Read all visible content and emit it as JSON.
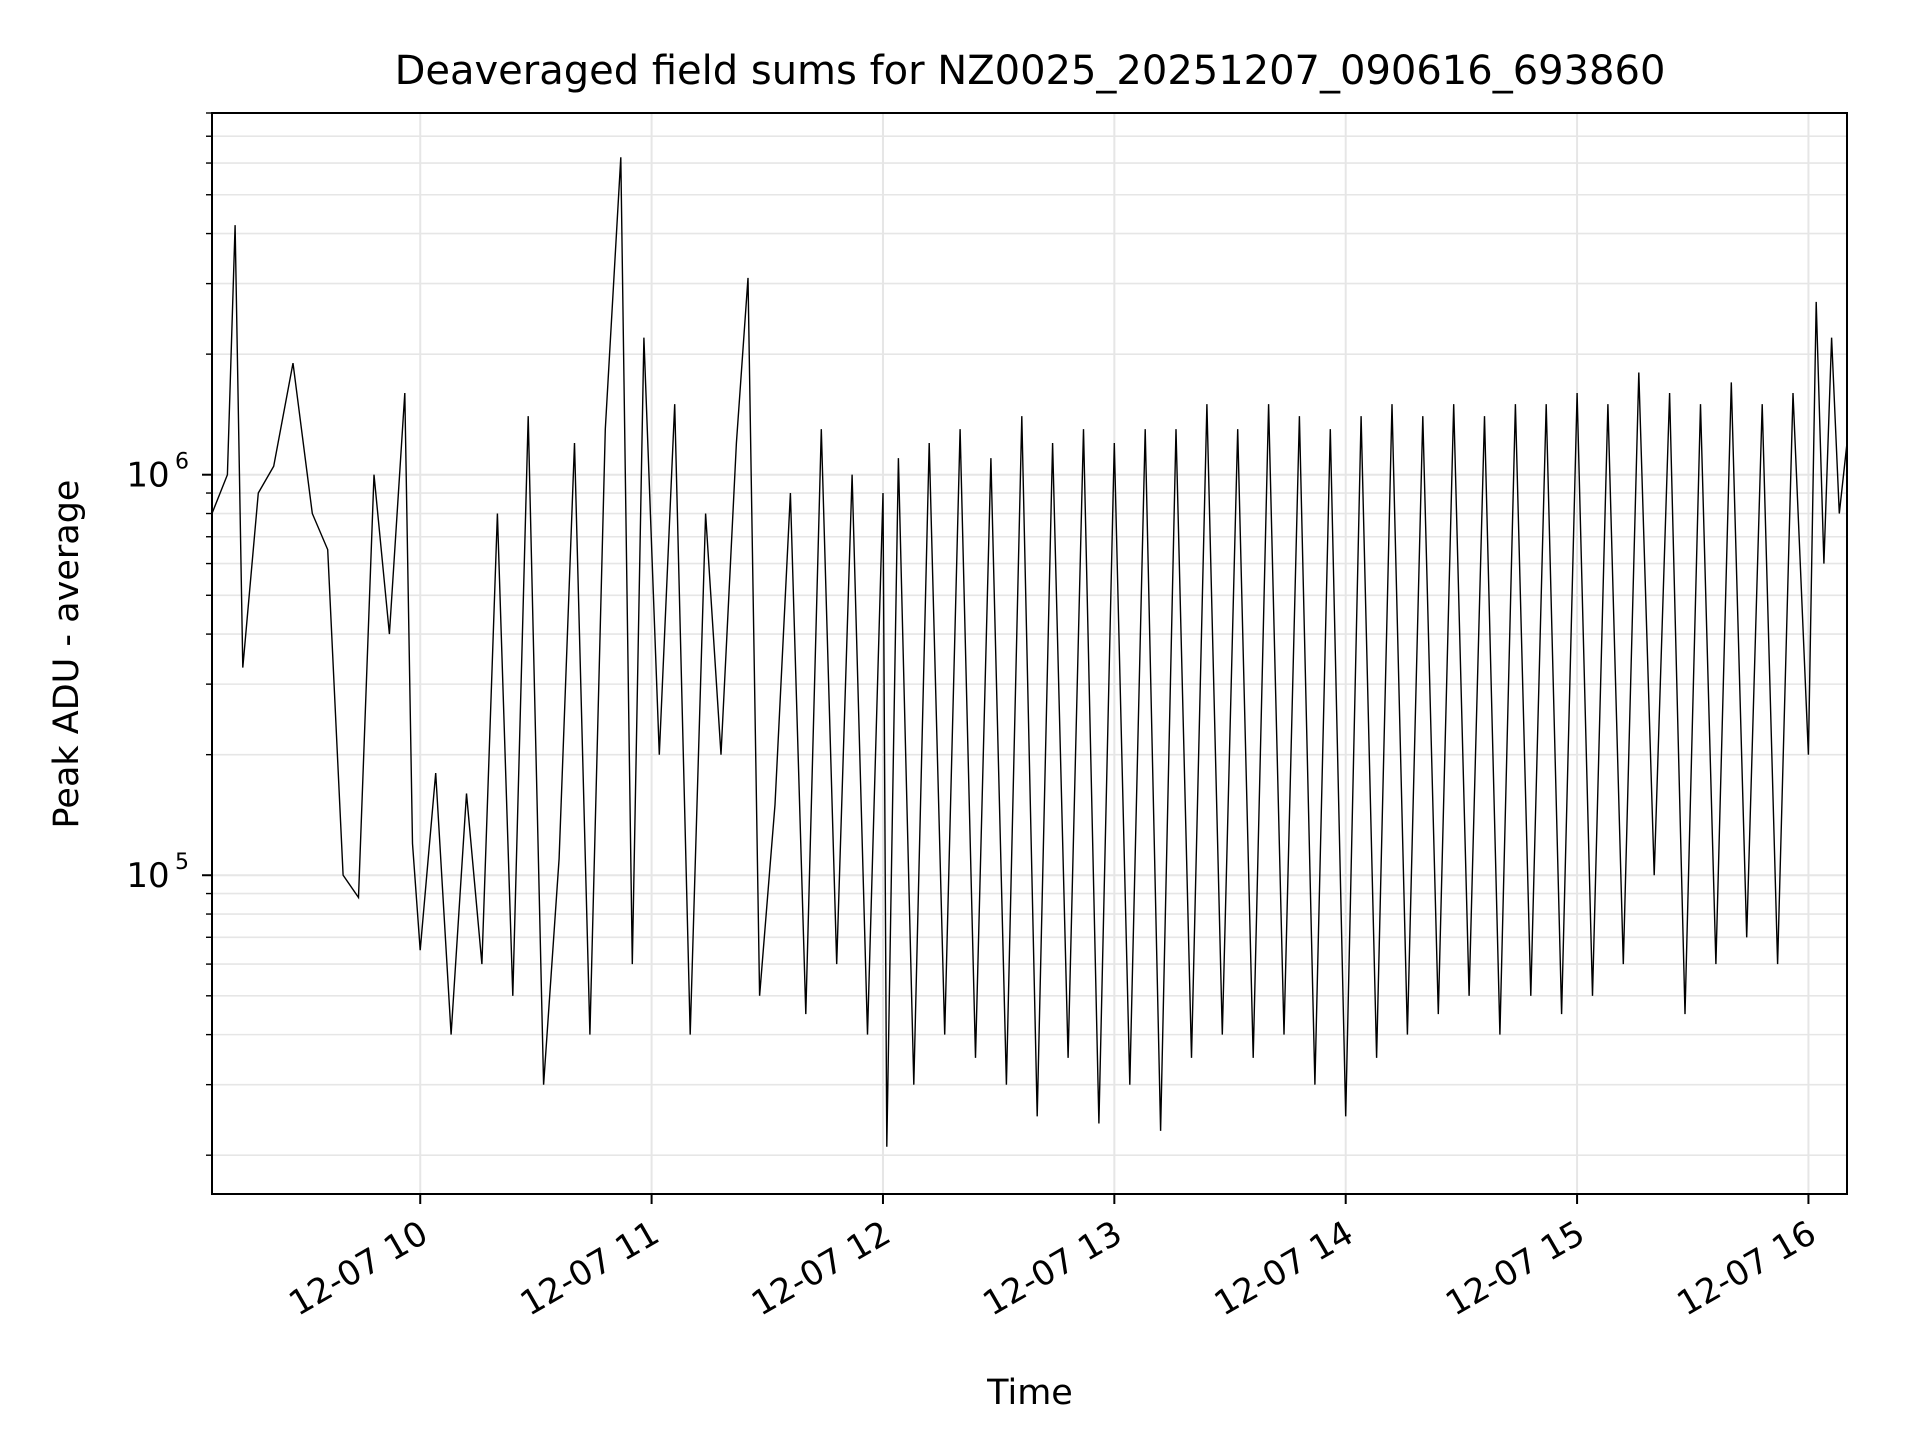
{
  "chart_data": {
    "type": "line",
    "title": "Deaveraged field sums for NZ0025_20251207_090616_693860",
    "xlabel": "Time",
    "ylabel": "Peak ADU - average",
    "yscale": "log",
    "xlim": [
      "2025-12-07 09:06",
      "2025-12-07 16:10"
    ],
    "ylim": [
      16000,
      8000000
    ],
    "x_ticks": [
      "12-07 10",
      "12-07 11",
      "12-07 12",
      "12-07 13",
      "12-07 14",
      "12-07 15",
      "12-07 16"
    ],
    "y_ticks": [
      {
        "base": "10",
        "exp": "5",
        "value": 100000
      },
      {
        "base": "10",
        "exp": "6",
        "value": 1000000
      }
    ],
    "grid": true,
    "line_color": "#000000",
    "series": [
      {
        "points": [
          [
            "2025-12-07 09:06",
            800000
          ],
          [
            "2025-12-07 09:10",
            1000000
          ],
          [
            "2025-12-07 09:12",
            4200000
          ],
          [
            "2025-12-07 09:14",
            330000
          ],
          [
            "2025-12-07 09:18",
            900000
          ],
          [
            "2025-12-07 09:22",
            1050000
          ],
          [
            "2025-12-07 09:27",
            1900000
          ],
          [
            "2025-12-07 09:32",
            800000
          ],
          [
            "2025-12-07 09:36",
            650000
          ],
          [
            "2025-12-07 09:40",
            100000
          ],
          [
            "2025-12-07 09:44",
            88000
          ],
          [
            "2025-12-07 09:48",
            1000000
          ],
          [
            "2025-12-07 09:52",
            400000
          ],
          [
            "2025-12-07 09:56",
            1600000
          ],
          [
            "2025-12-07 09:58",
            120000
          ],
          [
            "2025-12-07 10:00",
            65000
          ],
          [
            "2025-12-07 10:04",
            180000
          ],
          [
            "2025-12-07 10:08",
            40000
          ],
          [
            "2025-12-07 10:12",
            160000
          ],
          [
            "2025-12-07 10:16",
            60000
          ],
          [
            "2025-12-07 10:20",
            800000
          ],
          [
            "2025-12-07 10:24",
            50000
          ],
          [
            "2025-12-07 10:28",
            1400000
          ],
          [
            "2025-12-07 10:32",
            30000
          ],
          [
            "2025-12-07 10:36",
            110000
          ],
          [
            "2025-12-07 10:40",
            1200000
          ],
          [
            "2025-12-07 10:44",
            40000
          ],
          [
            "2025-12-07 10:48",
            1300000
          ],
          [
            "2025-12-07 10:52",
            6200000
          ],
          [
            "2025-12-07 10:55",
            60000
          ],
          [
            "2025-12-07 10:58",
            2200000
          ],
          [
            "2025-12-07 11:02",
            200000
          ],
          [
            "2025-12-07 11:06",
            1500000
          ],
          [
            "2025-12-07 11:10",
            40000
          ],
          [
            "2025-12-07 11:14",
            800000
          ],
          [
            "2025-12-07 11:18",
            200000
          ],
          [
            "2025-12-07 11:22",
            1200000
          ],
          [
            "2025-12-07 11:25",
            3100000
          ],
          [
            "2025-12-07 11:28",
            50000
          ],
          [
            "2025-12-07 11:32",
            150000
          ],
          [
            "2025-12-07 11:36",
            900000
          ],
          [
            "2025-12-07 11:40",
            45000
          ],
          [
            "2025-12-07 11:44",
            1300000
          ],
          [
            "2025-12-07 11:48",
            60000
          ],
          [
            "2025-12-07 11:52",
            1000000
          ],
          [
            "2025-12-07 11:56",
            40000
          ],
          [
            "2025-12-07 12:00",
            900000
          ],
          [
            "2025-12-07 12:01",
            21000
          ],
          [
            "2025-12-07 12:04",
            1100000
          ],
          [
            "2025-12-07 12:08",
            30000
          ],
          [
            "2025-12-07 12:12",
            1200000
          ],
          [
            "2025-12-07 12:16",
            40000
          ],
          [
            "2025-12-07 12:20",
            1300000
          ],
          [
            "2025-12-07 12:24",
            35000
          ],
          [
            "2025-12-07 12:28",
            1100000
          ],
          [
            "2025-12-07 12:32",
            30000
          ],
          [
            "2025-12-07 12:36",
            1400000
          ],
          [
            "2025-12-07 12:40",
            25000
          ],
          [
            "2025-12-07 12:44",
            1200000
          ],
          [
            "2025-12-07 12:48",
            35000
          ],
          [
            "2025-12-07 12:52",
            1300000
          ],
          [
            "2025-12-07 12:56",
            24000
          ],
          [
            "2025-12-07 13:00",
            1200000
          ],
          [
            "2025-12-07 13:04",
            30000
          ],
          [
            "2025-12-07 13:08",
            1300000
          ],
          [
            "2025-12-07 13:12",
            23000
          ],
          [
            "2025-12-07 13:16",
            1300000
          ],
          [
            "2025-12-07 13:20",
            35000
          ],
          [
            "2025-12-07 13:24",
            1500000
          ],
          [
            "2025-12-07 13:28",
            40000
          ],
          [
            "2025-12-07 13:32",
            1300000
          ],
          [
            "2025-12-07 13:36",
            35000
          ],
          [
            "2025-12-07 13:40",
            1500000
          ],
          [
            "2025-12-07 13:44",
            40000
          ],
          [
            "2025-12-07 13:48",
            1400000
          ],
          [
            "2025-12-07 13:52",
            30000
          ],
          [
            "2025-12-07 13:56",
            1300000
          ],
          [
            "2025-12-07 14:00",
            25000
          ],
          [
            "2025-12-07 14:04",
            1400000
          ],
          [
            "2025-12-07 14:08",
            35000
          ],
          [
            "2025-12-07 14:12",
            1500000
          ],
          [
            "2025-12-07 14:16",
            40000
          ],
          [
            "2025-12-07 14:20",
            1400000
          ],
          [
            "2025-12-07 14:24",
            45000
          ],
          [
            "2025-12-07 14:28",
            1500000
          ],
          [
            "2025-12-07 14:32",
            50000
          ],
          [
            "2025-12-07 14:36",
            1400000
          ],
          [
            "2025-12-07 14:40",
            40000
          ],
          [
            "2025-12-07 14:44",
            1500000
          ],
          [
            "2025-12-07 14:48",
            50000
          ],
          [
            "2025-12-07 14:52",
            1500000
          ],
          [
            "2025-12-07 14:56",
            45000
          ],
          [
            "2025-12-07 15:00",
            1600000
          ],
          [
            "2025-12-07 15:04",
            50000
          ],
          [
            "2025-12-07 15:08",
            1500000
          ],
          [
            "2025-12-07 15:12",
            60000
          ],
          [
            "2025-12-07 15:16",
            1800000
          ],
          [
            "2025-12-07 15:20",
            100000
          ],
          [
            "2025-12-07 15:24",
            1600000
          ],
          [
            "2025-12-07 15:28",
            45000
          ],
          [
            "2025-12-07 15:32",
            1500000
          ],
          [
            "2025-12-07 15:36",
            60000
          ],
          [
            "2025-12-07 15:40",
            1700000
          ],
          [
            "2025-12-07 15:44",
            70000
          ],
          [
            "2025-12-07 15:48",
            1500000
          ],
          [
            "2025-12-07 15:52",
            60000
          ],
          [
            "2025-12-07 15:56",
            1600000
          ],
          [
            "2025-12-07 16:00",
            200000
          ],
          [
            "2025-12-07 16:02",
            2700000
          ],
          [
            "2025-12-07 16:04",
            600000
          ],
          [
            "2025-12-07 16:06",
            2200000
          ],
          [
            "2025-12-07 16:08",
            800000
          ],
          [
            "2025-12-07 16:10",
            1200000
          ]
        ]
      }
    ]
  }
}
